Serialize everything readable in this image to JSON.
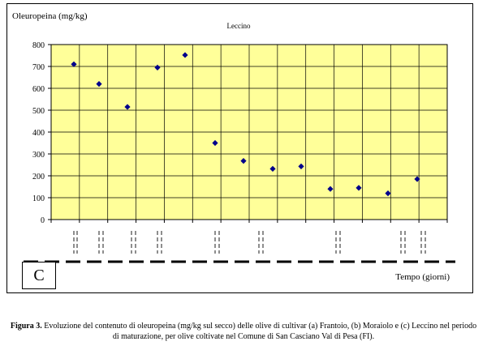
{
  "chart_data": {
    "type": "scatter",
    "title": "Leccino",
    "ylabel": "Oleuropeina (mg/kg)",
    "xlabel": "Tempo (giorni)",
    "ylim": [
      0,
      800
    ],
    "yticks": [
      0,
      100,
      200,
      300,
      400,
      500,
      600,
      700,
      800
    ],
    "grid": true,
    "series": [
      {
        "values": [
          710,
          620,
          515,
          695,
          752,
          350,
          268,
          232,
          243,
          140,
          145,
          120,
          185
        ],
        "color": "#00008b"
      }
    ],
    "panel_label": "C"
  },
  "caption": {
    "label": "Figura 3.",
    "text": " Evoluzione del contenuto di oleuropeina (mg/kg sul secco) delle olive di cultivar (a) Frantoio, (b) Moraiolo e (c) Leccino nel periodo di maturazione, per olive coltivate nel Comune di San Casciano Val di Pesa (FI)."
  },
  "colors": {
    "plot_bg": "#ffff99",
    "marker": "#00008b"
  }
}
